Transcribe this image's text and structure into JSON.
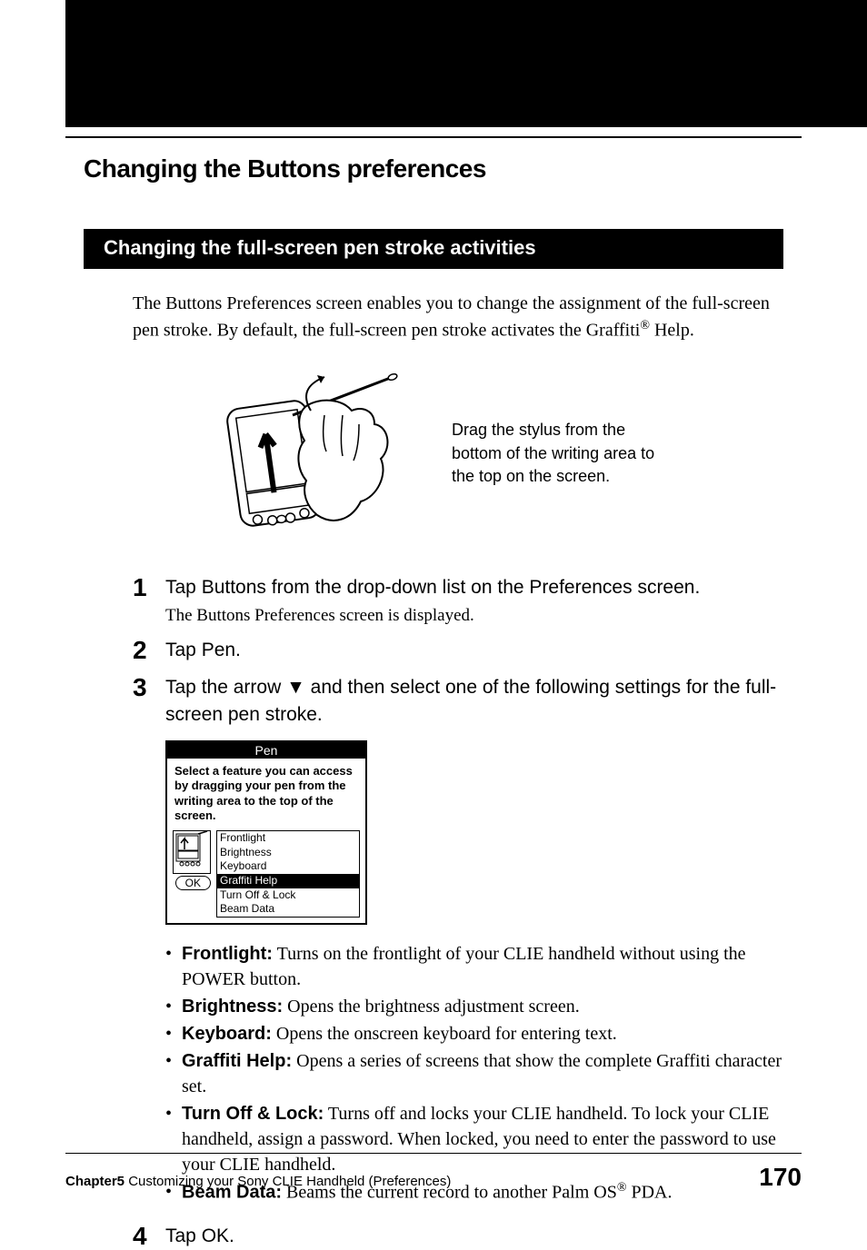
{
  "header": {
    "title": "Changing the Buttons preferences"
  },
  "section": {
    "title": "Changing the full-screen pen stroke activities",
    "intro_pre": "The Buttons Preferences screen enables you to change the assignment of the full-screen pen stroke. By default, the full-screen pen stroke activates the Graffiti",
    "intro_sup": "®",
    "intro_post": " Help."
  },
  "figure": {
    "caption": "Drag the stylus from the bottom of the writing area to the top on the screen."
  },
  "steps": [
    {
      "num": "1",
      "head": "Tap Buttons from the drop-down list on the Preferences screen.",
      "sub": "The Buttons Preferences screen is displayed."
    },
    {
      "num": "2",
      "head": "Tap Pen."
    },
    {
      "num": "3",
      "head": "Tap the arrow ▼ and then select one of the following settings for the full-screen pen stroke."
    },
    {
      "num": "4",
      "head": "Tap OK."
    }
  ],
  "pen_dialog": {
    "title": "Pen",
    "desc": "Select a feature you can access by dragging your pen from the writing area to the top of the screen.",
    "ok": "OK",
    "items": [
      "Frontlight",
      "Brightness",
      "Keyboard",
      "Graffiti Help",
      "Turn Off & Lock",
      "Beam Data"
    ],
    "selected_index": 3
  },
  "bullets": [
    {
      "term": "Frontlight:",
      "desc": " Turns on the frontlight of your CLIE handheld without using the POWER button."
    },
    {
      "term": "Brightness:",
      "desc": " Opens the brightness adjustment screen."
    },
    {
      "term": "Keyboard:",
      "desc": " Opens the onscreen keyboard for entering text."
    },
    {
      "term": "Graffiti Help:",
      "desc": " Opens a series of screens that show the complete Graffiti character set."
    },
    {
      "term": "Turn Off & Lock:",
      "desc": " Turns off and locks your CLIE handheld. To lock your CLIE handheld, assign a password. When locked, you need to enter the password to use your CLIE handheld."
    },
    {
      "term": "Beam Data:",
      "desc_pre": " Beams the current record to another Palm OS",
      "desc_sup": "®",
      "desc_post": " PDA."
    }
  ],
  "footer": {
    "chapter": "Chapter5",
    "chapter_title": "  Customizing your Sony CLIE Handheld (Preferences)",
    "page": "170"
  },
  "colors": {
    "black": "#000000",
    "white": "#ffffff"
  }
}
